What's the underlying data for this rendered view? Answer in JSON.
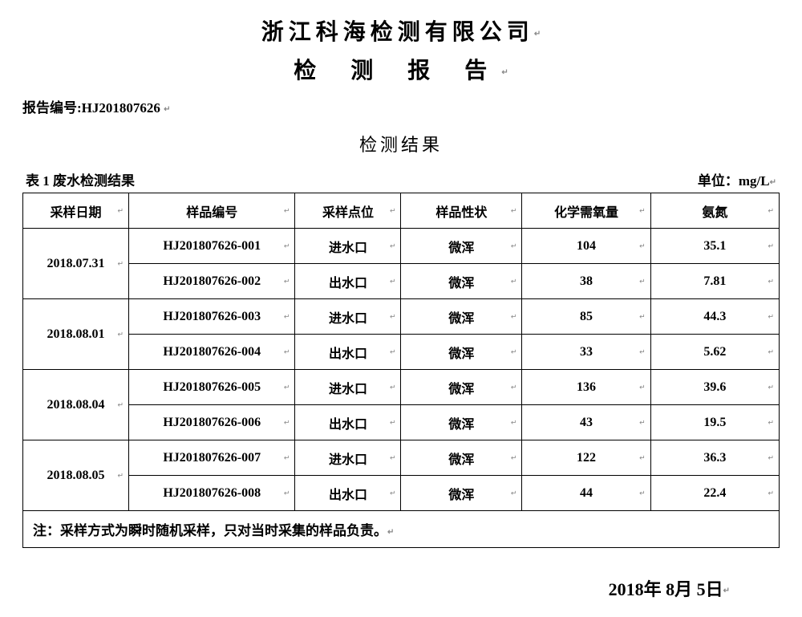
{
  "header": {
    "company": "浙江科海检测有限公司",
    "doc_title": "检 测 报 告",
    "report_no_label": "报告编号:",
    "report_no_value": "HJ201807626",
    "section_heading": "检测结果",
    "table_caption": "表 1   废水检测结果",
    "unit_label": "单位：",
    "unit_value": "mg/L"
  },
  "table": {
    "columns": [
      "采样日期",
      "样品编号",
      "采样点位",
      "样品性状",
      "化学需氧量",
      "氨氮"
    ],
    "groups": [
      {
        "date": "2018.07.31",
        "rows": [
          {
            "id": "HJ201807626-001",
            "point": "进水口",
            "state": "微浑",
            "cod": "104",
            "nh3": "35.1"
          },
          {
            "id": "HJ201807626-002",
            "point": "出水口",
            "state": "微浑",
            "cod": "38",
            "nh3": "7.81"
          }
        ]
      },
      {
        "date": "2018.08.01",
        "rows": [
          {
            "id": "HJ201807626-003",
            "point": "进水口",
            "state": "微浑",
            "cod": "85",
            "nh3": "44.3"
          },
          {
            "id": "HJ201807626-004",
            "point": "出水口",
            "state": "微浑",
            "cod": "33",
            "nh3": "5.62"
          }
        ]
      },
      {
        "date": "2018.08.04",
        "rows": [
          {
            "id": "HJ201807626-005",
            "point": "进水口",
            "state": "微浑",
            "cod": "136",
            "nh3": "39.6"
          },
          {
            "id": "HJ201807626-006",
            "point": "出水口",
            "state": "微浑",
            "cod": "43",
            "nh3": "19.5"
          }
        ]
      },
      {
        "date": "2018.08.05",
        "rows": [
          {
            "id": "HJ201807626-007",
            "point": "进水口",
            "state": "微浑",
            "cod": "122",
            "nh3": "36.3"
          },
          {
            "id": "HJ201807626-008",
            "point": "出水口",
            "state": "微浑",
            "cod": "44",
            "nh3": "22.4"
          }
        ]
      }
    ],
    "note": "注：采样方式为瞬时随机采样，只对当时采集的样品负责。"
  },
  "footer": {
    "year": "2018",
    "year_suffix": "年",
    "month": "8",
    "month_suffix": "月",
    "day": "5",
    "day_suffix": "日"
  },
  "style": {
    "text_color": "#000000",
    "bg_color": "#ffffff",
    "border_color": "#000000",
    "mark_color": "#888888",
    "title_fontsize": 28,
    "section_fontsize": 22,
    "body_fontsize": 17,
    "cell_fontsize": 16,
    "footer_fontsize": 22,
    "font_cn": "SimSun",
    "font_en": "Times New Roman"
  }
}
